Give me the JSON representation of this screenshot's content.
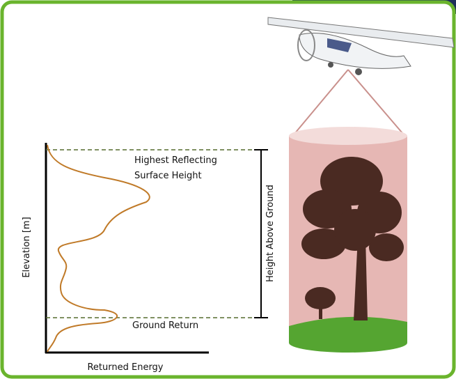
{
  "labels": {
    "highest_reflecting": [
      "Highest Reflecting",
      "Surface Height"
    ],
    "ground_return": "Ground Return",
    "height_above_ground": "Height Above Ground",
    "y_axis": "Elevation [m]",
    "x_axis": "Returned Energy"
  }
}
